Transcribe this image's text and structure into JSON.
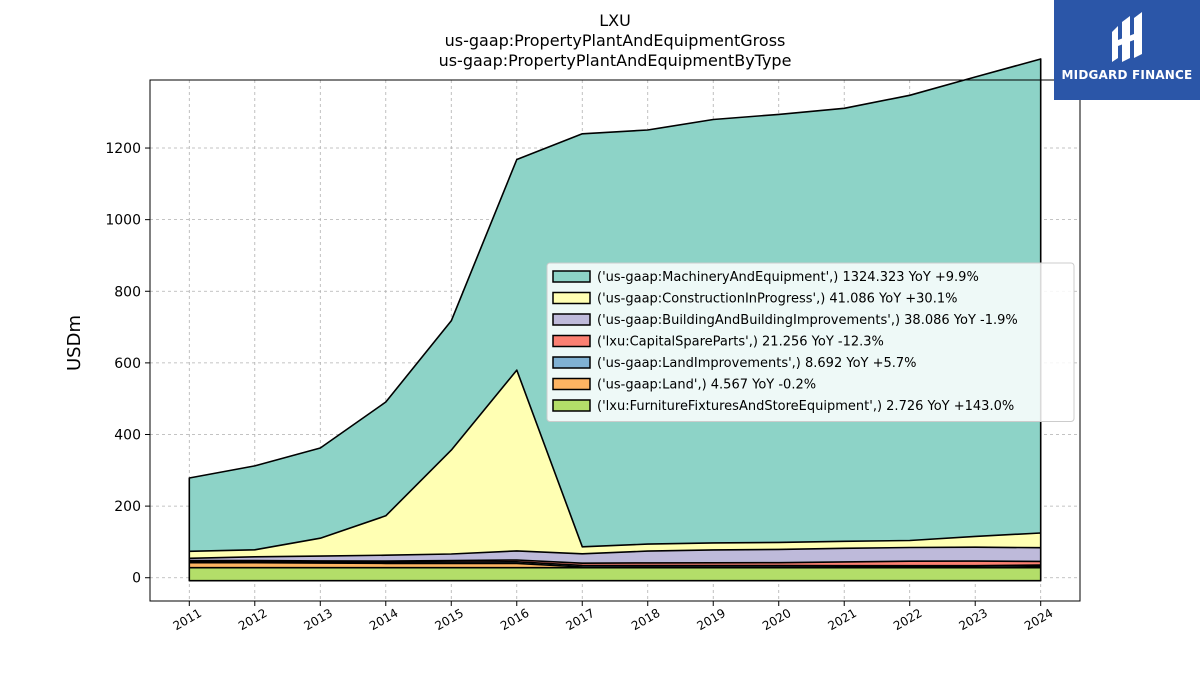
{
  "chart_data": {
    "type": "area",
    "title": [
      "LXU",
      "us-gaap:PropertyPlantAndEquipmentGross",
      "us-gaap:PropertyPlantAndEquipmentByType"
    ],
    "xlabel": "",
    "ylabel": "USDm",
    "x": [
      2011,
      2012,
      2013,
      2014,
      2015,
      2016,
      2017,
      2018,
      2019,
      2020,
      2021,
      2022,
      2023,
      2024
    ],
    "xlim": [
      2010.4,
      2024.6
    ],
    "ylim": [
      -65,
      1390
    ],
    "yticks": [
      0,
      200,
      400,
      600,
      800,
      1000,
      1200
    ],
    "grid": true,
    "legend_position": "center-right",
    "series": [
      {
        "name": "('us-gaap:MachineryAndEquipment',) 1324.323 YoY +9.9%",
        "color": "#8dd3c7",
        "values": [
          214,
          240,
          252,
          318,
          361,
          588,
          1155,
          1160,
          1188,
          1201,
          1213,
          1245,
          1283,
          1324
        ]
      },
      {
        "name": "('us-gaap:ConstructionInProgress',) 41.086 YoY +30.1%",
        "color": "#ffffb3",
        "values": [
          10,
          14,
          50,
          110,
          290,
          505,
          18,
          16,
          14,
          14,
          16,
          18,
          30,
          41
        ]
      },
      {
        "name": "('us-gaap:BuildingAndBuildingImprovements',) 38.086 YoY -1.9%",
        "color": "#bebada",
        "values": [
          26,
          30,
          33,
          36,
          38,
          40,
          30,
          33,
          36,
          37,
          38,
          38,
          38.8,
          38.1
        ]
      },
      {
        "name": "('lxu:CapitalSpareParts',) 21.256 YoY -12.3%",
        "color": "#fb8072",
        "values": [
          0,
          0,
          0,
          0,
          0,
          5,
          16,
          20,
          20,
          20,
          22,
          24,
          24.2,
          21.3
        ]
      },
      {
        "name": "('us-gaap:LandImprovements',) 8.692 YoY +5.7%",
        "color": "#80b1d3",
        "values": [
          3,
          3,
          3,
          3,
          4,
          5,
          6,
          7,
          7.5,
          7.8,
          8,
          8.2,
          8.2,
          8.7
        ]
      },
      {
        "name": "('us-gaap:Land',) 4.567 YoY -0.2%",
        "color": "#fdb462",
        "values": [
          3,
          3,
          3,
          3.5,
          4,
          4.5,
          4.5,
          4.5,
          4.6,
          4.6,
          4.6,
          4.6,
          4.58,
          4.57
        ]
      },
      {
        "name": "('lxu:FurnitureFixturesAndStoreEquipment',) 2.726 YoY +143.0%",
        "color": "#b3de69",
        "values": [
          14,
          14,
          13,
          12,
          12,
          12,
          2,
          1.5,
          1.2,
          1.2,
          1.1,
          1.1,
          1.12,
          2.73
        ]
      }
    ]
  },
  "logo": {
    "text": "MIDGARD FINANCE"
  }
}
